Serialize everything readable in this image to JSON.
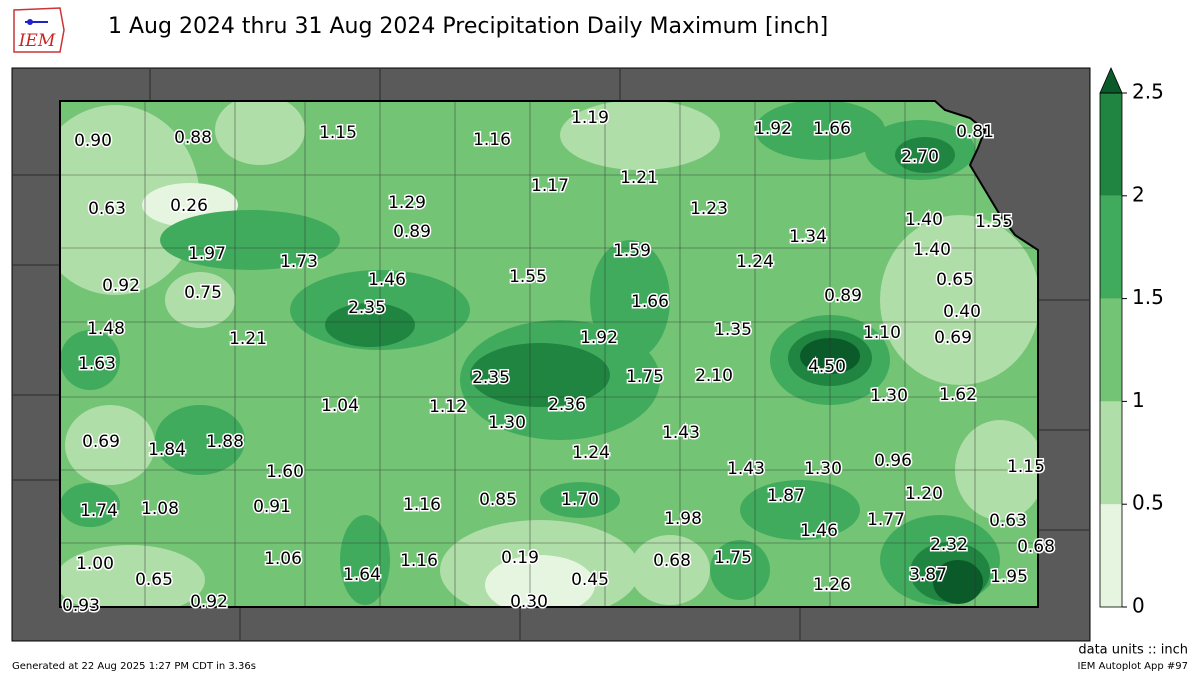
{
  "header": {
    "logo_text": "IEM",
    "title": "1 Aug 2024 thru 31 Aug 2024 Precipitation Daily Maximum [inch]"
  },
  "stations": [
    {
      "label": "0.90"
    },
    {
      "label": "0.88"
    },
    {
      "label": "1.15"
    },
    {
      "label": "1.16"
    },
    {
      "label": "1.19"
    },
    {
      "label": "1.92"
    },
    {
      "label": "1.66"
    },
    {
      "label": "2.70"
    },
    {
      "label": "0.81"
    },
    {
      "label": "0.63"
    },
    {
      "label": "0.26"
    },
    {
      "label": "1.29"
    },
    {
      "label": "1.17"
    },
    {
      "label": "1.21"
    },
    {
      "label": "1.23"
    },
    {
      "label": "1.40"
    },
    {
      "label": "1.55"
    },
    {
      "label": "0.89"
    },
    {
      "label": "1.34"
    },
    {
      "label": "1.40"
    },
    {
      "label": "1.97"
    },
    {
      "label": "1.73"
    },
    {
      "label": "1.55"
    },
    {
      "label": "1.59"
    },
    {
      "label": "1.24"
    },
    {
      "label": "0.65"
    },
    {
      "label": "0.92"
    },
    {
      "label": "0.75"
    },
    {
      "label": "1.46"
    },
    {
      "label": "1.66"
    },
    {
      "label": "0.89"
    },
    {
      "label": "0.40"
    },
    {
      "label": "1.48"
    },
    {
      "label": "2.35"
    },
    {
      "label": "1.21"
    },
    {
      "label": "1.92"
    },
    {
      "label": "1.35"
    },
    {
      "label": "1.10"
    },
    {
      "label": "0.69"
    },
    {
      "label": "1.63"
    },
    {
      "label": "2.35"
    },
    {
      "label": "1.75"
    },
    {
      "label": "2.10"
    },
    {
      "label": "4.50"
    },
    {
      "label": "1.30"
    },
    {
      "label": "1.62"
    },
    {
      "label": "1.04"
    },
    {
      "label": "1.12"
    },
    {
      "label": "2.36"
    },
    {
      "label": "1.30"
    },
    {
      "label": "0.69"
    },
    {
      "label": "1.84"
    },
    {
      "label": "1.88"
    },
    {
      "label": "1.43"
    },
    {
      "label": "1.24"
    },
    {
      "label": "1.60"
    },
    {
      "label": "1.43"
    },
    {
      "label": "1.30"
    },
    {
      "label": "0.96"
    },
    {
      "label": "1.15"
    },
    {
      "label": "1.74"
    },
    {
      "label": "1.08"
    },
    {
      "label": "0.91"
    },
    {
      "label": "1.16"
    },
    {
      "label": "0.85"
    },
    {
      "label": "1.70"
    },
    {
      "label": "1.87"
    },
    {
      "label": "1.20"
    },
    {
      "label": "1.98"
    },
    {
      "label": "1.77"
    },
    {
      "label": "0.63"
    },
    {
      "label": "1.46"
    },
    {
      "label": "2.32"
    },
    {
      "label": "0.68"
    },
    {
      "label": "1.00"
    },
    {
      "label": "1.06"
    },
    {
      "label": "1.16"
    },
    {
      "label": "0.19"
    },
    {
      "label": "0.68"
    },
    {
      "label": "1.75"
    },
    {
      "label": "0.65"
    },
    {
      "label": "1.64"
    },
    {
      "label": "0.45"
    },
    {
      "label": "3.87"
    },
    {
      "label": "1.95"
    },
    {
      "label": "1.26"
    },
    {
      "label": "0.93"
    },
    {
      "label": "0.92"
    },
    {
      "label": "0.30"
    }
  ],
  "colorbar": {
    "ticks": [
      0,
      0.5,
      1,
      1.5,
      2,
      2.5
    ],
    "colors": [
      "#e5f5e0",
      "#b0dea8",
      "#74c476",
      "#41ab5d",
      "#1f8540"
    ],
    "extend_color": "#0b5a2a"
  },
  "footer": {
    "units": "data units :: inch",
    "generated": "Generated at 22 Aug 2025 1:27 PM CDT in 3.36s",
    "app": "IEM Autoplot App #97"
  }
}
